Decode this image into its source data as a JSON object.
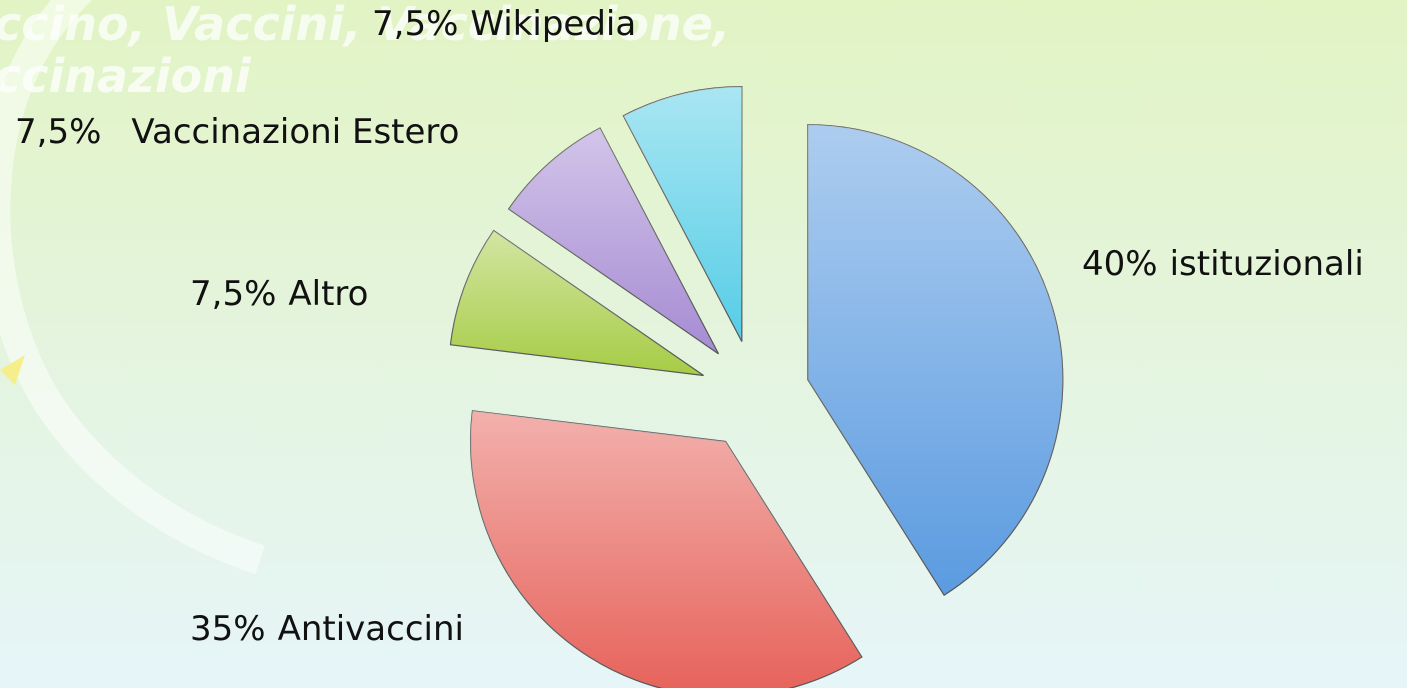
{
  "chart_data": {
    "type": "pie",
    "title": [
      "ccino, Vaccini, Vaccinazione,",
      "ccinazioni"
    ],
    "categories": [
      "istituzionali",
      "Antivaccini",
      "Altro",
      "Vaccinazioni Estero",
      "Wikipedia"
    ],
    "values": [
      40,
      35,
      7.5,
      7.5,
      7.5
    ],
    "value_labels": [
      "40%",
      "35%",
      "7,5%",
      "7,5%",
      "7,5%"
    ],
    "colors": [
      "#5b9be0",
      "#e6625a",
      "#a6cc45",
      "#a68bd3",
      "#55cde6"
    ]
  }
}
